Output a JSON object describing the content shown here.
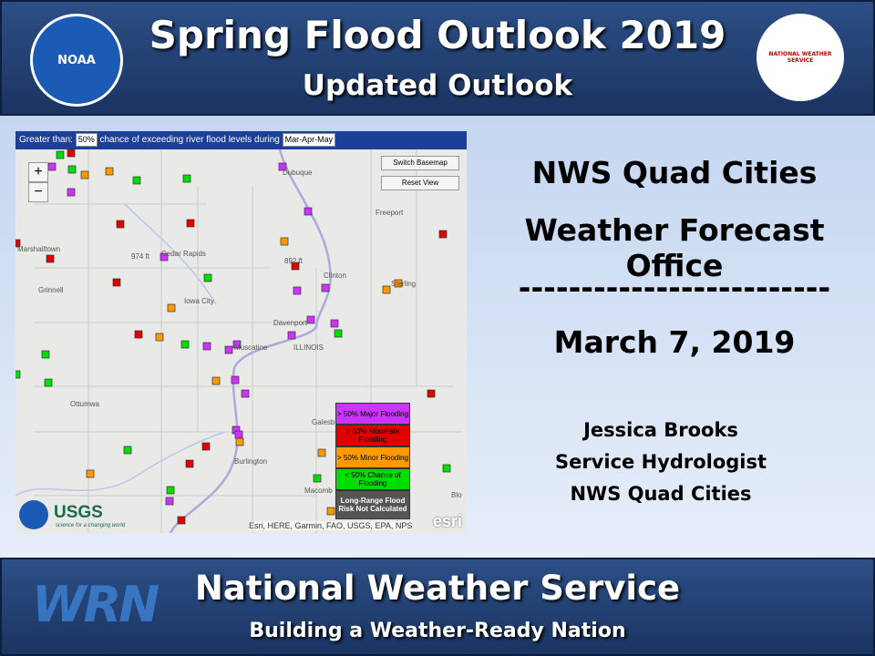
{
  "header": {
    "title": "Spring Flood Outlook 2019",
    "subtitle": "Updated Outlook",
    "left_logo": "NOAA",
    "right_logo": "NATIONAL WEATHER SERVICE"
  },
  "map": {
    "controls": {
      "prefix": "Greater than:",
      "threshold": "50%",
      "middle": "chance of exceeding river flood levels during",
      "period": "Mar-Apr-May",
      "zoom_in": "+",
      "zoom_out": "−",
      "switch_basemap": "Switch Basemap",
      "reset_view": "Reset View"
    },
    "places": [
      "Dubuque",
      "Freeport",
      "Marshalltown",
      "Cedar Rapids",
      "974 ft",
      "892 ft",
      "Grinnell",
      "Iowa City",
      "Clinton",
      "Sterling",
      "Davenport",
      "Muscatine",
      "ILLINOIS",
      "Ottumwa",
      "Burlington",
      "Galesb",
      "Macomb",
      "Blo"
    ],
    "legend": [
      {
        "label": "> 50% Major Flooding",
        "color": "#cc33ff"
      },
      {
        "label": "> 50% Moderate Flooding",
        "color": "#e00000"
      },
      {
        "label": "> 50% Minor Flooding",
        "color": "#ff9900"
      },
      {
        "label": "< 50% Chance of Flooding",
        "color": "#00dd00"
      },
      {
        "label": "Long-Range Flood Risk Not Calculated",
        "color": "#555555"
      }
    ],
    "attribution": "Esri, HERE, Garmin, FAO, USGS, EPA, NPS",
    "usgs": "USGS",
    "usgs_tagline": "science for a changing world",
    "esri": "esri"
  },
  "panel": {
    "office": "NWS Quad Cities",
    "office_type": "Weather Forecast Office",
    "divider": "-------------------------",
    "date": "March 7, 2019",
    "author": "Jessica Brooks",
    "role": "Service Hydrologist",
    "org": "NWS Quad Cities"
  },
  "footer": {
    "title": "National Weather Service",
    "tagline": "Building a Weather-Ready Nation",
    "logo": "WRN"
  }
}
